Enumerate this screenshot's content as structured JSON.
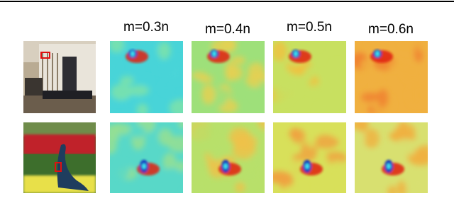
{
  "column_labels": [
    "m=0.3n",
    "m=0.4n",
    "m=0.5n",
    "m=0.6n"
  ]
}
